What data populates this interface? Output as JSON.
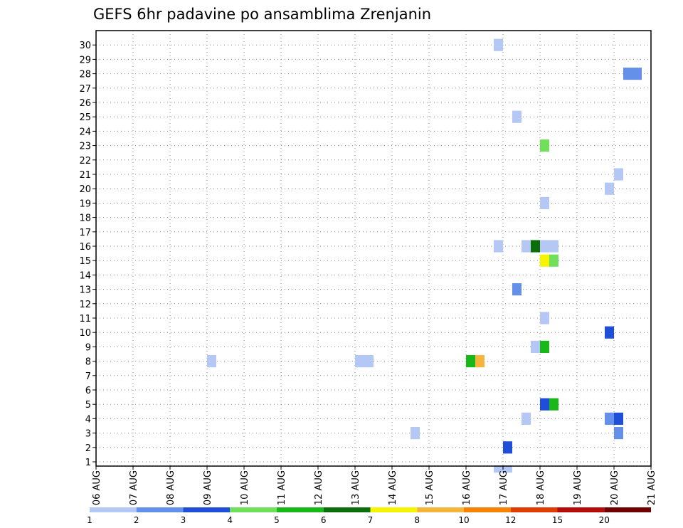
{
  "chart_data": {
    "type": "heatmap",
    "title": "GEFS 6hr padavine po ansamblima Zrenjanin",
    "xlabel": "",
    "ylabel": "",
    "x_tick_labels": [
      "06 AUG",
      "07 AUG",
      "08 AUG",
      "09 AUG",
      "10 AUG",
      "11 AUG",
      "12 AUG",
      "13 AUG",
      "14 AUG",
      "15 AUG",
      "16 AUG",
      "17 AUG",
      "18 AUG",
      "19 AUG",
      "20 AUG",
      "21 AUG"
    ],
    "y_tick_labels": [
      "1",
      "2",
      "3",
      "4",
      "5",
      "6",
      "7",
      "8",
      "9",
      "10",
      "11",
      "12",
      "13",
      "14",
      "15",
      "16",
      "17",
      "18",
      "19",
      "20",
      "21",
      "22",
      "23",
      "24",
      "25",
      "26",
      "27",
      "28",
      "29",
      "30"
    ],
    "xlim_days": [
      0,
      15
    ],
    "ylim_members": [
      0,
      30
    ],
    "grid": "dotted",
    "legend": {
      "position": "bottom",
      "levels": [
        "1",
        "2",
        "3",
        "4",
        "5",
        "6",
        "7",
        "8",
        "10",
        "12",
        "15",
        "20"
      ],
      "colors": [
        "#b4c7f5",
        "#6490ea",
        "#1f4fd8",
        "#70e05a",
        "#18b818",
        "#0a6e0a",
        "#f5f500",
        "#f5b43c",
        "#f58200",
        "#e03c00",
        "#b40a0a",
        "#6e0000"
      ]
    },
    "cells_note": "each cell: day = days since 06 AUG 00z (left edge), member = ensemble member, level = precipitation class index into legend colors",
    "cells": [
      {
        "day": 10.75,
        "member": 0,
        "level": 0
      },
      {
        "day": 11.0,
        "member": 0,
        "level": 0
      },
      {
        "day": 11.0,
        "member": 1,
        "level": 2
      },
      {
        "day": 8.5,
        "member": 2,
        "level": 0
      },
      {
        "day": 14.0,
        "member": 2,
        "level": 1
      },
      {
        "day": 11.5,
        "member": 3,
        "level": 0
      },
      {
        "day": 13.75,
        "member": 3,
        "level": 1
      },
      {
        "day": 14.0,
        "member": 3,
        "level": 2
      },
      {
        "day": 12.0,
        "member": 4,
        "level": 2
      },
      {
        "day": 12.25,
        "member": 4,
        "level": 4
      },
      {
        "day": 3.0,
        "member": 7,
        "level": 0
      },
      {
        "day": 7.0,
        "member": 7,
        "level": 0
      },
      {
        "day": 7.25,
        "member": 7,
        "level": 0
      },
      {
        "day": 10.0,
        "member": 7,
        "level": 4
      },
      {
        "day": 10.25,
        "member": 7,
        "level": 7
      },
      {
        "day": 11.75,
        "member": 8,
        "level": 0
      },
      {
        "day": 12.0,
        "member": 8,
        "level": 4
      },
      {
        "day": 13.75,
        "member": 9,
        "level": 2
      },
      {
        "day": 12.0,
        "member": 10,
        "level": 0
      },
      {
        "day": 11.25,
        "member": 12,
        "level": 1
      },
      {
        "day": 12.0,
        "member": 14,
        "level": 6
      },
      {
        "day": 12.25,
        "member": 14,
        "level": 3
      },
      {
        "day": 10.75,
        "member": 15,
        "level": 0
      },
      {
        "day": 11.5,
        "member": 15,
        "level": 0
      },
      {
        "day": 11.75,
        "member": 15,
        "level": 5
      },
      {
        "day": 12.0,
        "member": 15,
        "level": 0
      },
      {
        "day": 12.25,
        "member": 15,
        "level": 0
      },
      {
        "day": 12.0,
        "member": 18,
        "level": 0
      },
      {
        "day": 13.75,
        "member": 19,
        "level": 0
      },
      {
        "day": 14.0,
        "member": 20,
        "level": 0
      },
      {
        "day": 12.0,
        "member": 22,
        "level": 3
      },
      {
        "day": 11.25,
        "member": 24,
        "level": 0
      },
      {
        "day": 14.25,
        "member": 27,
        "level": 1
      },
      {
        "day": 14.5,
        "member": 27,
        "level": 1
      },
      {
        "day": 10.75,
        "member": 29,
        "level": 0
      }
    ]
  }
}
